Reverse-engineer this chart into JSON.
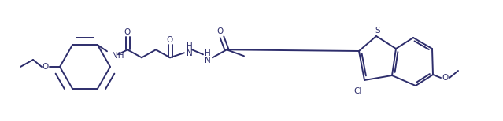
{
  "background": "#ffffff",
  "line_color": "#2d2d6b",
  "line_width": 1.4,
  "text_color": "#2d2d6b",
  "font_size": 7.5,
  "figsize": [
    6.39,
    1.54
  ],
  "dpi": 100,
  "xlim": [
    0,
    639
  ],
  "ylim": [
    0,
    154
  ]
}
